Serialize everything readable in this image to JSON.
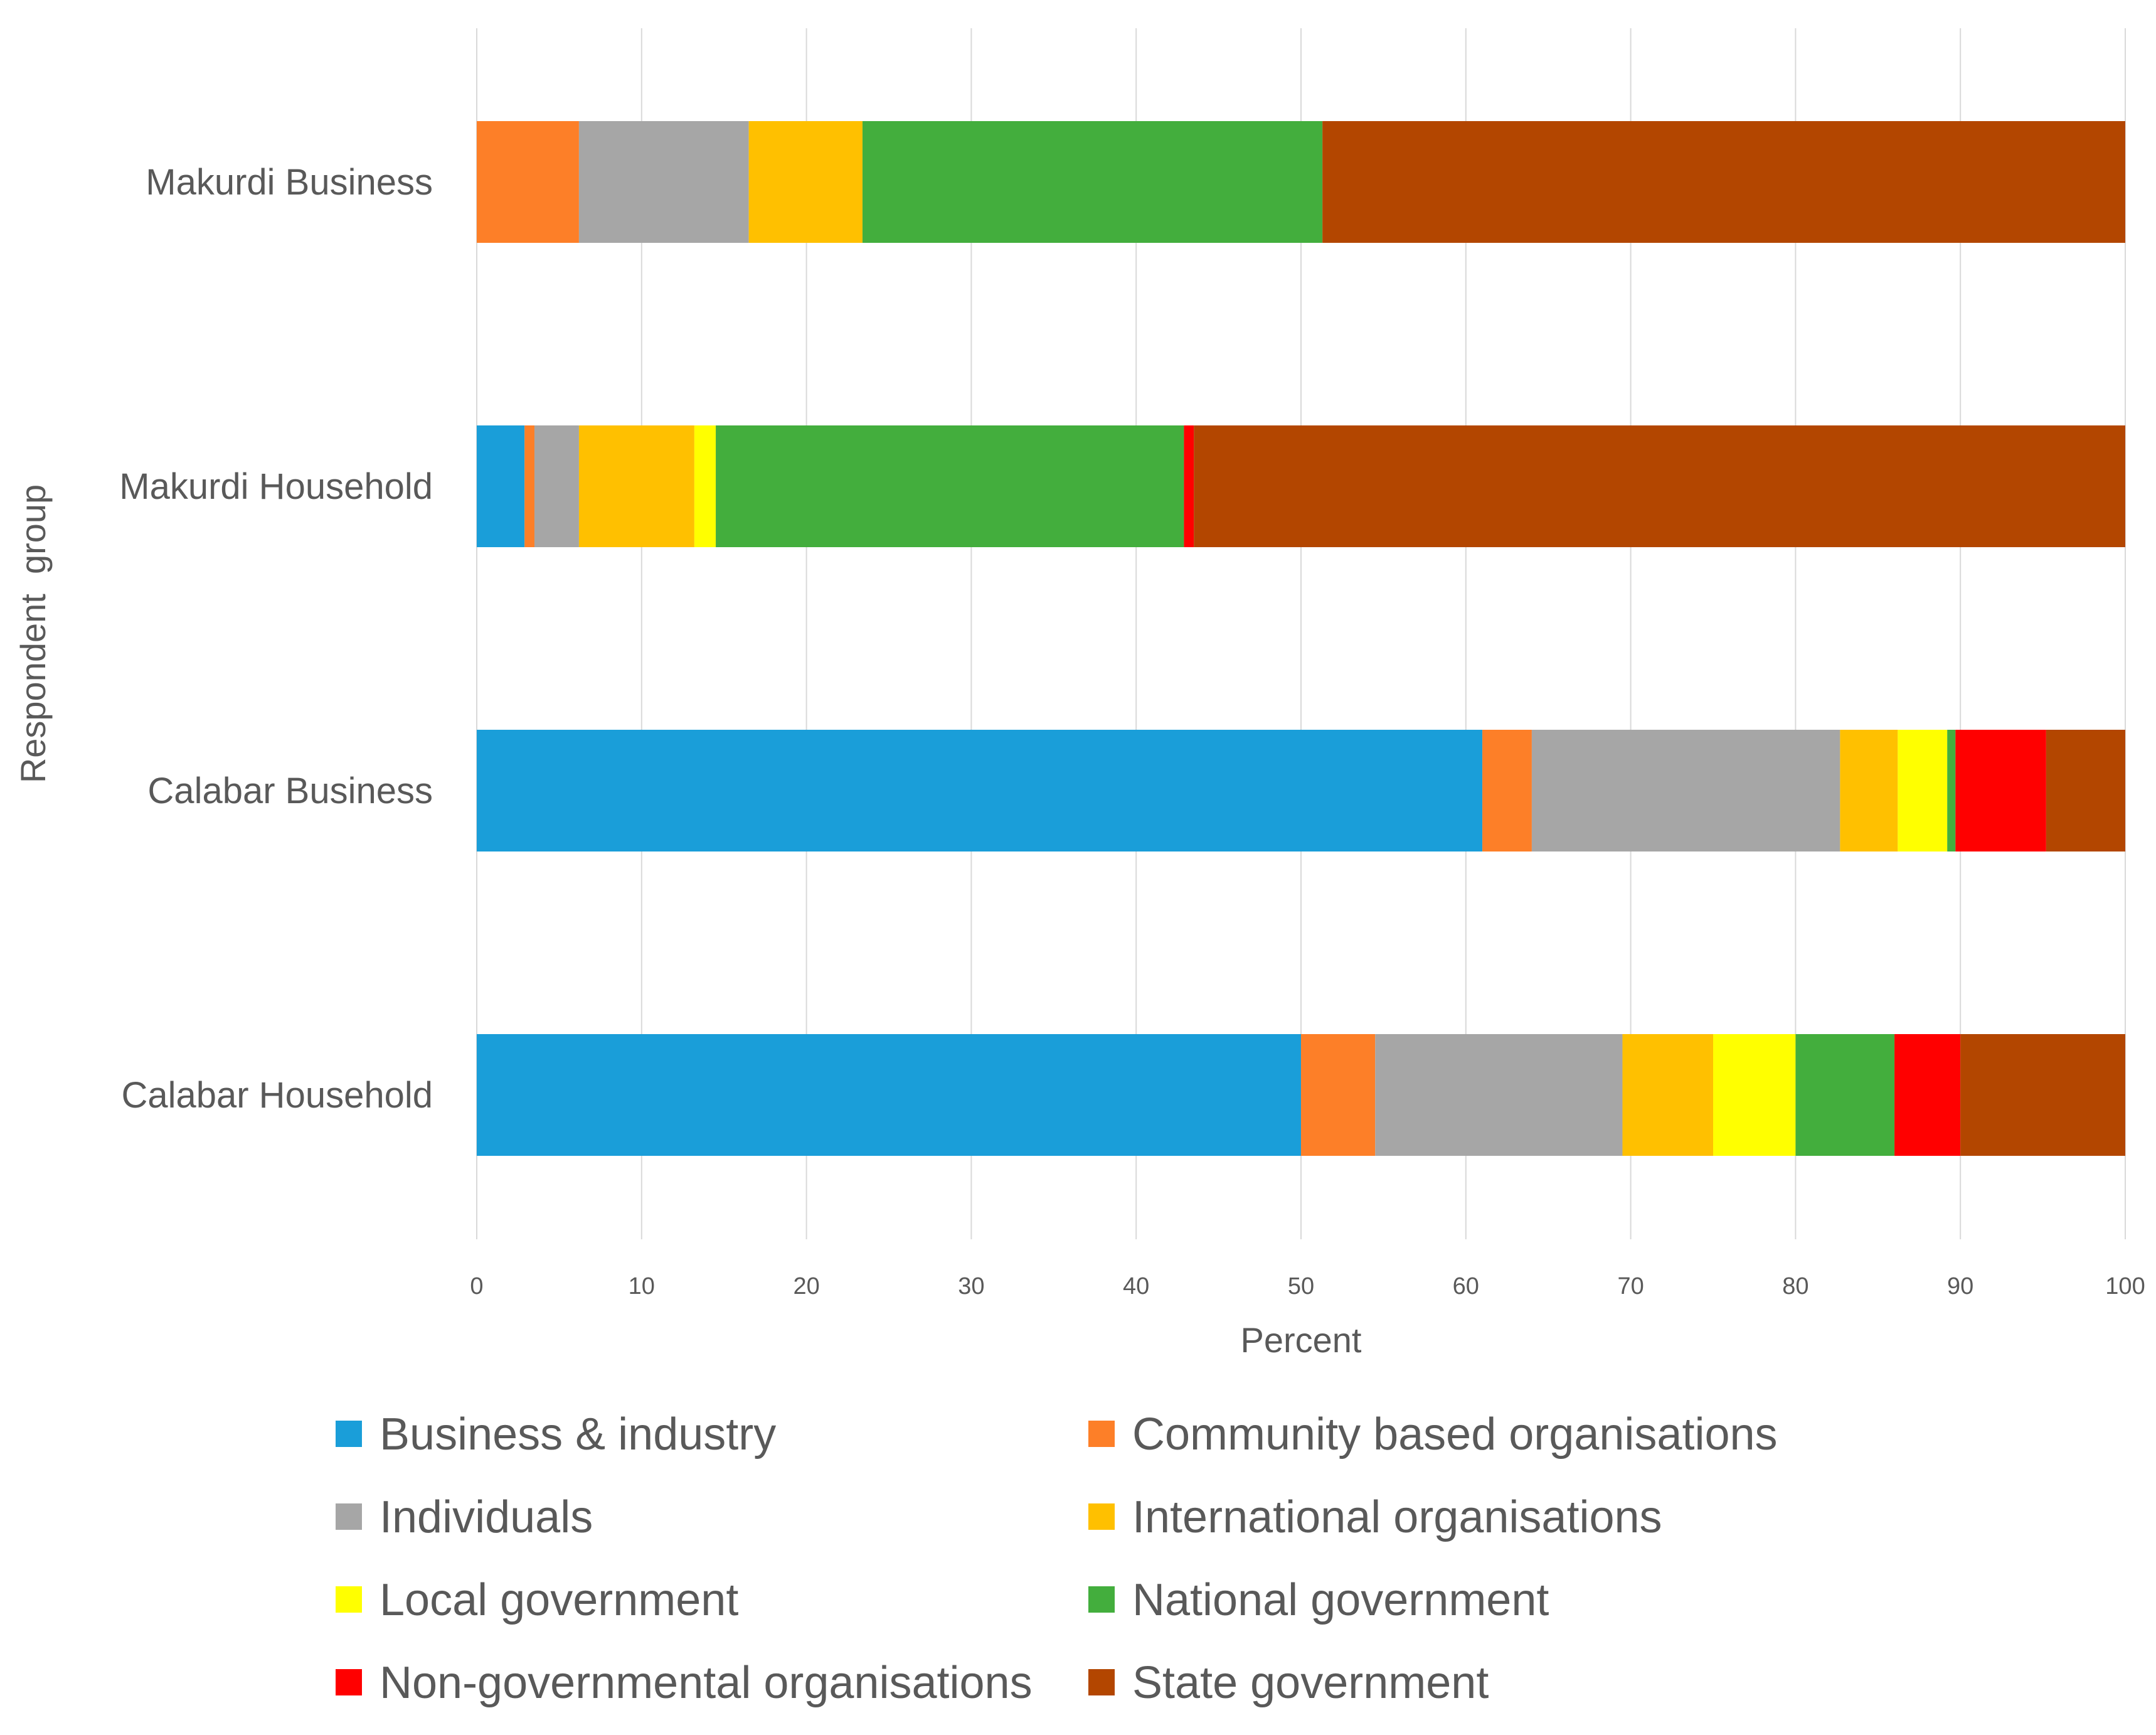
{
  "chart_data": {
    "type": "bar",
    "orientation": "horizontal",
    "stacked": true,
    "xlabel": "Percent",
    "ylabel": "Respondent  group",
    "xlim": [
      0,
      100
    ],
    "xticks": [
      0,
      10,
      20,
      30,
      40,
      50,
      60,
      70,
      80,
      90,
      100
    ],
    "grid": true,
    "legend_position": "bottom",
    "categories": [
      "Makurdi Business",
      "Makurdi Household",
      "Calabar Business",
      "Calabar Household"
    ],
    "series": [
      {
        "name": "Business & industry",
        "color": "#1a9ed9",
        "values": [
          0,
          2.9,
          61.0,
          50.0
        ]
      },
      {
        "name": "Community based organisations",
        "color": "#fd7f28",
        "values": [
          6.2,
          0.6,
          3.0,
          4.5
        ]
      },
      {
        "name": "Individuals",
        "color": "#a6a6a6",
        "values": [
          10.3,
          2.7,
          18.7,
          15.0
        ]
      },
      {
        "name": "International organisations",
        "color": "#ffc000",
        "values": [
          6.9,
          7.0,
          3.5,
          5.5
        ]
      },
      {
        "name": "Local government",
        "color": "#ffff00",
        "values": [
          0,
          1.3,
          3.0,
          5.0
        ]
      },
      {
        "name": "National government",
        "color": "#43ae3d",
        "values": [
          27.9,
          28.4,
          0.5,
          6.0
        ]
      },
      {
        "name": "Non-governmental organisations",
        "color": "#ff0000",
        "values": [
          0,
          0.6,
          5.5,
          4.0
        ]
      },
      {
        "name": "State government",
        "color": "#b34600",
        "values": [
          48.7,
          56.5,
          4.8,
          10.0
        ]
      }
    ]
  }
}
